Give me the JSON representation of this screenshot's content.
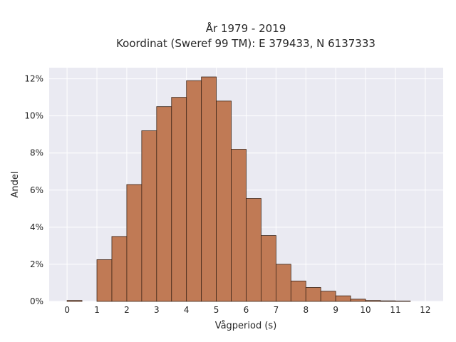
{
  "chart_data": {
    "type": "bar",
    "title_lines": [
      "År 1979 - 2019",
      "Koordinat (Sweref 99 TM): E 379433, N 6137333"
    ],
    "xlabel": "Vågperiod (s)",
    "ylabel": "Andel",
    "xlim": [
      -0.6,
      12.6
    ],
    "ylim": [
      0,
      12.6
    ],
    "xticks": [
      0,
      1,
      2,
      3,
      4,
      5,
      6,
      7,
      8,
      9,
      10,
      11,
      12
    ],
    "yticks": [
      0,
      2,
      4,
      6,
      8,
      10,
      12
    ],
    "ytick_labels": [
      "0%",
      "2%",
      "4%",
      "6%",
      "8%",
      "10%",
      "12%"
    ],
    "grid": true,
    "bin_width": 0.5,
    "bin_starts": [
      0,
      1,
      1.5,
      2,
      2.5,
      3,
      3.5,
      4,
      4.5,
      5,
      5.5,
      6,
      6.5,
      7,
      7.5,
      8,
      8.5,
      9,
      9.5,
      10,
      10.5,
      11
    ],
    "values": [
      0.05,
      2.25,
      3.5,
      6.3,
      9.2,
      10.5,
      11.0,
      11.9,
      12.1,
      10.8,
      8.2,
      5.55,
      3.55,
      2.0,
      1.1,
      0.75,
      0.55,
      0.3,
      0.12,
      0.05,
      0.03,
      0.02
    ],
    "colors": {
      "bar": "#c07a55",
      "edge": "#3b2417",
      "background": "#eaeaf2",
      "grid": "#ffffff"
    }
  }
}
